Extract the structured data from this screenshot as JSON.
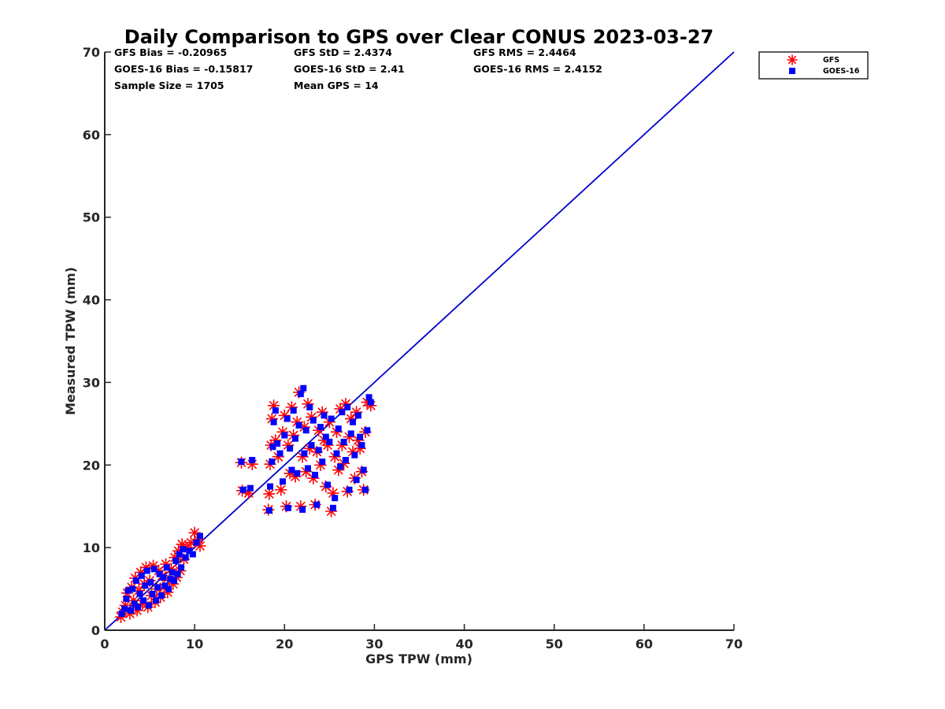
{
  "chart_data": {
    "type": "scatter",
    "title": "Daily Comparison to GPS over Clear CONUS 2023-03-27",
    "xlabel": "GPS TPW (mm)",
    "ylabel": "Measured TPW (mm)",
    "xlim": [
      0,
      70
    ],
    "ylim": [
      0,
      70
    ],
    "xticks": [
      "0",
      "10",
      "20",
      "30",
      "40",
      "50",
      "60",
      "70"
    ],
    "yticks": [
      "0",
      "10",
      "20",
      "30",
      "40",
      "50",
      "60",
      "70"
    ],
    "grid": false,
    "legend_position": "outside top-right",
    "stats": [
      "GFS Bias = -0.20965",
      "GFS StD = 2.4374",
      "GFS RMS = 2.4464",
      "GOES-16 Bias = -0.15817",
      "GOES-16 StD = 2.41",
      "GOES-16 RMS = 2.4152",
      "Sample Size = 1705",
      "Mean GPS = 14"
    ],
    "reference_line": {
      "x": [
        0,
        70
      ],
      "y": [
        0,
        70
      ],
      "color": "#0000cc"
    },
    "series": [
      {
        "name": "GFS",
        "marker": "asterisk",
        "color": "#ff0000",
        "points": [
          [
            1.8,
            1.6
          ],
          [
            2.0,
            2.2
          ],
          [
            2.3,
            3.0
          ],
          [
            2.5,
            4.5
          ],
          [
            2.8,
            2.0
          ],
          [
            3.0,
            5.2
          ],
          [
            3.2,
            3.6
          ],
          [
            3.4,
            6.3
          ],
          [
            3.6,
            2.4
          ],
          [
            3.8,
            4.8
          ],
          [
            4.0,
            7.0
          ],
          [
            4.2,
            3.2
          ],
          [
            4.4,
            5.6
          ],
          [
            4.6,
            7.6
          ],
          [
            4.8,
            2.8
          ],
          [
            5.0,
            6.0
          ],
          [
            5.2,
            4.2
          ],
          [
            5.4,
            7.8
          ],
          [
            5.6,
            3.4
          ],
          [
            5.8,
            5.0
          ],
          [
            6.0,
            7.2
          ],
          [
            6.2,
            4.0
          ],
          [
            6.4,
            6.6
          ],
          [
            6.6,
            5.2
          ],
          [
            6.8,
            8.0
          ],
          [
            7.0,
            4.6
          ],
          [
            7.2,
            6.0
          ],
          [
            7.4,
            7.4
          ],
          [
            7.6,
            5.6
          ],
          [
            7.8,
            8.8
          ],
          [
            8.0,
            6.4
          ],
          [
            8.2,
            9.6
          ],
          [
            8.4,
            7.2
          ],
          [
            8.6,
            10.4
          ],
          [
            8.8,
            8.6
          ],
          [
            9.2,
            10.0
          ],
          [
            9.6,
            10.6
          ],
          [
            10.0,
            11.8
          ],
          [
            10.4,
            11.0
          ],
          [
            10.6,
            10.2
          ],
          [
            15.2,
            20.3
          ],
          [
            15.3,
            16.9
          ],
          [
            16.0,
            16.6
          ],
          [
            16.4,
            20.1
          ],
          [
            18.2,
            14.6
          ],
          [
            18.3,
            16.5
          ],
          [
            18.4,
            20.1
          ],
          [
            18.5,
            22.4
          ],
          [
            18.6,
            25.6
          ],
          [
            18.8,
            27.2
          ],
          [
            19.0,
            23.0
          ],
          [
            19.3,
            21.0
          ],
          [
            19.6,
            17.0
          ],
          [
            19.8,
            24.0
          ],
          [
            20.0,
            26.0
          ],
          [
            20.2,
            15.0
          ],
          [
            20.4,
            22.4
          ],
          [
            20.6,
            19.0
          ],
          [
            20.8,
            27.0
          ],
          [
            21.0,
            23.6
          ],
          [
            21.2,
            18.6
          ],
          [
            21.4,
            25.2
          ],
          [
            21.6,
            28.8
          ],
          [
            21.8,
            15.0
          ],
          [
            22.0,
            21.0
          ],
          [
            22.2,
            24.6
          ],
          [
            22.4,
            19.2
          ],
          [
            22.6,
            27.4
          ],
          [
            22.8,
            22.0
          ],
          [
            23.0,
            25.8
          ],
          [
            23.2,
            18.4
          ],
          [
            23.4,
            15.2
          ],
          [
            23.6,
            21.6
          ],
          [
            23.8,
            24.2
          ],
          [
            24.0,
            20.0
          ],
          [
            24.2,
            26.4
          ],
          [
            24.4,
            23.0
          ],
          [
            24.6,
            17.4
          ],
          [
            24.8,
            22.4
          ],
          [
            25.0,
            25.2
          ],
          [
            25.2,
            14.4
          ],
          [
            25.4,
            16.6
          ],
          [
            25.6,
            21.0
          ],
          [
            25.8,
            24.0
          ],
          [
            26.0,
            19.4
          ],
          [
            26.2,
            26.8
          ],
          [
            26.4,
            22.4
          ],
          [
            26.6,
            20.2
          ],
          [
            26.8,
            27.4
          ],
          [
            27.0,
            16.8
          ],
          [
            27.2,
            23.4
          ],
          [
            27.4,
            25.6
          ],
          [
            27.6,
            21.6
          ],
          [
            27.8,
            18.4
          ],
          [
            28.0,
            26.4
          ],
          [
            28.2,
            23.0
          ],
          [
            28.4,
            22.0
          ],
          [
            28.6,
            19.2
          ],
          [
            28.8,
            17.0
          ],
          [
            29.0,
            24.0
          ],
          [
            29.2,
            27.6
          ],
          [
            29.6,
            27.2
          ]
        ]
      },
      {
        "name": "GOES-16",
        "marker": "square",
        "color": "#0000ff",
        "points": [
          [
            1.9,
            2.0
          ],
          [
            2.2,
            2.6
          ],
          [
            2.4,
            3.8
          ],
          [
            2.6,
            4.8
          ],
          [
            2.9,
            2.4
          ],
          [
            3.1,
            5.0
          ],
          [
            3.3,
            3.2
          ],
          [
            3.5,
            6.0
          ],
          [
            3.7,
            2.8
          ],
          [
            3.9,
            4.4
          ],
          [
            4.1,
            6.6
          ],
          [
            4.3,
            3.6
          ],
          [
            4.5,
            5.4
          ],
          [
            4.7,
            7.2
          ],
          [
            4.9,
            3.0
          ],
          [
            5.1,
            5.8
          ],
          [
            5.3,
            4.4
          ],
          [
            5.5,
            7.4
          ],
          [
            5.7,
            3.6
          ],
          [
            5.9,
            5.2
          ],
          [
            6.1,
            6.8
          ],
          [
            6.3,
            4.2
          ],
          [
            6.5,
            6.4
          ],
          [
            6.7,
            5.4
          ],
          [
            6.9,
            7.6
          ],
          [
            7.1,
            5.0
          ],
          [
            7.3,
            6.2
          ],
          [
            7.5,
            7.0
          ],
          [
            7.7,
            6.0
          ],
          [
            7.9,
            8.4
          ],
          [
            8.1,
            6.8
          ],
          [
            8.3,
            9.2
          ],
          [
            8.5,
            7.6
          ],
          [
            8.7,
            9.8
          ],
          [
            9.0,
            8.8
          ],
          [
            9.4,
            9.6
          ],
          [
            9.8,
            9.2
          ],
          [
            10.2,
            10.6
          ],
          [
            10.6,
            11.4
          ],
          [
            15.2,
            20.4
          ],
          [
            15.4,
            17.0
          ],
          [
            16.2,
            17.2
          ],
          [
            16.4,
            20.6
          ],
          [
            18.3,
            14.5
          ],
          [
            18.4,
            17.4
          ],
          [
            18.6,
            20.4
          ],
          [
            18.7,
            22.2
          ],
          [
            18.8,
            25.2
          ],
          [
            19.0,
            26.6
          ],
          [
            19.2,
            22.6
          ],
          [
            19.5,
            21.4
          ],
          [
            19.8,
            18.0
          ],
          [
            20.0,
            23.6
          ],
          [
            20.3,
            25.6
          ],
          [
            20.4,
            14.8
          ],
          [
            20.6,
            22.0
          ],
          [
            20.8,
            19.4
          ],
          [
            21.0,
            26.6
          ],
          [
            21.2,
            23.2
          ],
          [
            21.4,
            19.0
          ],
          [
            21.6,
            24.8
          ],
          [
            21.8,
            28.6
          ],
          [
            22.0,
            14.6
          ],
          [
            22.1,
            29.3
          ],
          [
            22.2,
            21.4
          ],
          [
            22.4,
            24.2
          ],
          [
            22.6,
            19.6
          ],
          [
            22.8,
            27.0
          ],
          [
            23.0,
            22.4
          ],
          [
            23.2,
            25.4
          ],
          [
            23.4,
            18.8
          ],
          [
            23.6,
            15.2
          ],
          [
            23.8,
            21.8
          ],
          [
            24.0,
            24.6
          ],
          [
            24.2,
            20.4
          ],
          [
            24.4,
            26.0
          ],
          [
            24.6,
            23.4
          ],
          [
            24.8,
            17.6
          ],
          [
            25.0,
            22.8
          ],
          [
            25.2,
            25.6
          ],
          [
            25.4,
            14.8
          ],
          [
            25.6,
            16.0
          ],
          [
            25.8,
            21.4
          ],
          [
            26.0,
            24.4
          ],
          [
            26.2,
            19.8
          ],
          [
            26.4,
            26.4
          ],
          [
            26.6,
            22.8
          ],
          [
            26.8,
            20.6
          ],
          [
            27.0,
            27.0
          ],
          [
            27.2,
            17.0
          ],
          [
            27.4,
            23.8
          ],
          [
            27.6,
            25.2
          ],
          [
            27.8,
            21.2
          ],
          [
            28.0,
            18.2
          ],
          [
            28.2,
            26.0
          ],
          [
            28.4,
            23.4
          ],
          [
            28.6,
            22.4
          ],
          [
            28.8,
            19.4
          ],
          [
            29.0,
            17.0
          ],
          [
            29.2,
            24.2
          ],
          [
            29.4,
            28.2
          ],
          [
            29.6,
            27.6
          ]
        ]
      }
    ]
  }
}
